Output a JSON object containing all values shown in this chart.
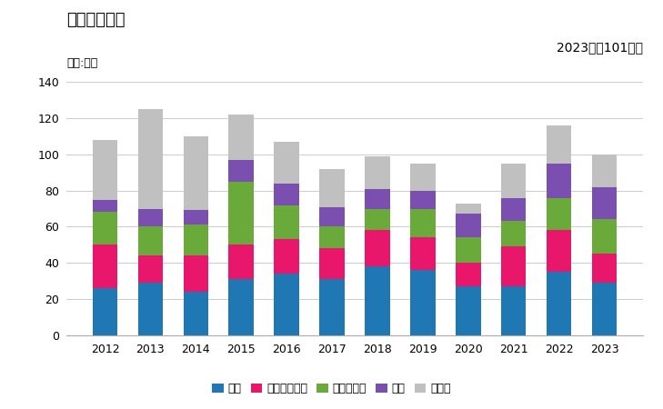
{
  "years": [
    2012,
    2013,
    2014,
    2015,
    2016,
    2017,
    2018,
    2019,
    2020,
    2021,
    2022,
    2023
  ],
  "korea": [
    26,
    29,
    24,
    31,
    34,
    31,
    38,
    36,
    27,
    27,
    35,
    29
  ],
  "singapore": [
    24,
    15,
    20,
    19,
    19,
    17,
    20,
    18,
    13,
    22,
    23,
    16
  ],
  "malaysia": [
    18,
    16,
    17,
    35,
    19,
    12,
    12,
    16,
    14,
    14,
    18,
    19
  ],
  "australia": [
    7,
    10,
    8,
    12,
    12,
    11,
    11,
    10,
    13,
    13,
    19,
    18
  ],
  "other": [
    33,
    55,
    41,
    25,
    23,
    21,
    18,
    15,
    6,
    19,
    21,
    18
  ],
  "colors": {
    "korea": "#1f77b4",
    "singapore": "#e8176b",
    "malaysia": "#6aaa3a",
    "australia": "#7b4fb0",
    "other": "#c0c0c0"
  },
  "labels": {
    "korea": "韓国",
    "singapore": "シンガポール",
    "malaysia": "マレーシア",
    "australia": "豪州",
    "other": "その他"
  },
  "title": "輸出量の推移",
  "unit_label": "単位:トン",
  "annotation": "2023年：101トン",
  "ylim": [
    0,
    140
  ],
  "yticks": [
    0,
    20,
    40,
    60,
    80,
    100,
    120,
    140
  ]
}
